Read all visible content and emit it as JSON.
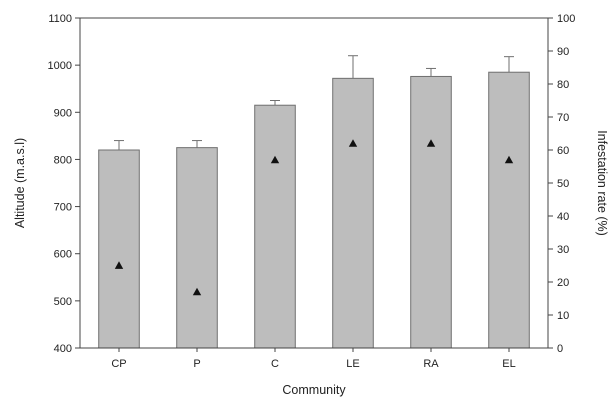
{
  "chart_data": {
    "type": "bar",
    "categories": [
      "CP",
      "P",
      "C",
      "LE",
      "RA",
      "EL"
    ],
    "xlabel": "Community",
    "ylabel": "Altitude (m.a.s.l)",
    "y2label": "Infestation rate (%)",
    "ylim": [
      400,
      1100
    ],
    "y2lim": [
      0,
      100
    ],
    "yticks": [
      400,
      500,
      600,
      700,
      800,
      900,
      1000,
      1100
    ],
    "y2ticks": [
      0,
      10,
      20,
      30,
      40,
      50,
      60,
      70,
      80,
      90,
      100
    ],
    "series": [
      {
        "kind": "bar",
        "axis": "left",
        "values": [
          820,
          825,
          915,
          972,
          976,
          985
        ],
        "errors": [
          20,
          15,
          10,
          48,
          17,
          33
        ]
      },
      {
        "kind": "scatter",
        "axis": "right",
        "values": [
          25,
          17,
          57,
          62,
          62,
          57
        ]
      }
    ],
    "colors": {
      "bar_fill": "#bdbdbd",
      "bar_stroke": "#6f6f6f",
      "marker": "#111111",
      "axis": "#444444"
    },
    "grid": false,
    "legend": "none"
  }
}
